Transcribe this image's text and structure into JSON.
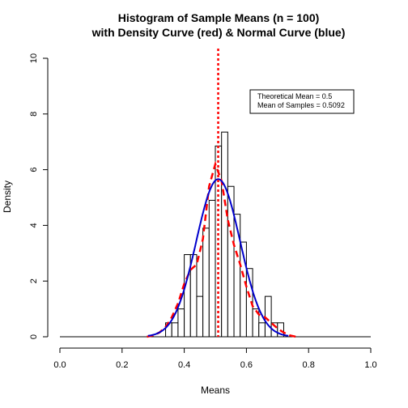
{
  "chart_data": {
    "type": "bar",
    "title": "Histogram of Sample Means (n = 100)",
    "subtitle": "with Density Curve (red) & Normal Curve (blue)",
    "xlabel": "Means",
    "ylabel": "Density",
    "xlim": [
      0,
      1
    ],
    "ylim": [
      0,
      10
    ],
    "x_ticks": [
      "0.0",
      "0.2",
      "0.4",
      "0.6",
      "0.8",
      "1.0"
    ],
    "y_ticks": [
      "0",
      "2",
      "4",
      "6",
      "8",
      "10"
    ],
    "bin_width": 0.02,
    "bins": [
      {
        "x0": 0.32,
        "density": 0.0
      },
      {
        "x0": 0.34,
        "density": 0.5
      },
      {
        "x0": 0.36,
        "density": 0.5
      },
      {
        "x0": 0.38,
        "density": 1.0
      },
      {
        "x0": 0.4,
        "density": 2.95
      },
      {
        "x0": 0.42,
        "density": 2.95
      },
      {
        "x0": 0.44,
        "density": 1.45
      },
      {
        "x0": 0.46,
        "density": 3.9
      },
      {
        "x0": 0.48,
        "density": 4.9
      },
      {
        "x0": 0.5,
        "density": 6.85
      },
      {
        "x0": 0.52,
        "density": 7.35
      },
      {
        "x0": 0.54,
        "density": 5.4
      },
      {
        "x0": 0.56,
        "density": 4.4
      },
      {
        "x0": 0.58,
        "density": 3.4
      },
      {
        "x0": 0.6,
        "density": 2.45
      },
      {
        "x0": 0.62,
        "density": 1.0
      },
      {
        "x0": 0.64,
        "density": 0.5
      },
      {
        "x0": 0.66,
        "density": 1.45
      },
      {
        "x0": 0.68,
        "density": 0.5
      },
      {
        "x0": 0.7,
        "density": 0.5
      }
    ],
    "series": [
      {
        "name": "Density Curve",
        "color": "#ff0000",
        "style": "dashed",
        "x": [
          0.28,
          0.3,
          0.32,
          0.34,
          0.36,
          0.38,
          0.4,
          0.42,
          0.44,
          0.46,
          0.48,
          0.5,
          0.52,
          0.54,
          0.56,
          0.58,
          0.6,
          0.62,
          0.64,
          0.66,
          0.68,
          0.7,
          0.72,
          0.74,
          0.76
        ],
        "y": [
          0.0,
          0.05,
          0.15,
          0.35,
          0.7,
          1.2,
          1.9,
          2.4,
          2.6,
          3.5,
          5.4,
          6.2,
          5.6,
          4.2,
          3.3,
          2.6,
          1.8,
          1.1,
          0.8,
          0.7,
          0.5,
          0.3,
          0.15,
          0.05,
          0.0
        ]
      },
      {
        "name": "Normal Curve",
        "color": "#0000cc",
        "style": "solid",
        "mean": 0.5092,
        "sd": 0.0705
      }
    ],
    "reference_line": {
      "x": 0.5092,
      "color": "#ff0000",
      "style": "dotted"
    },
    "legend": {
      "position": "top-right",
      "items": [
        "Theoretical Mean = 0.5",
        "Mean of Samples = 0.5092"
      ]
    },
    "grid": false
  }
}
